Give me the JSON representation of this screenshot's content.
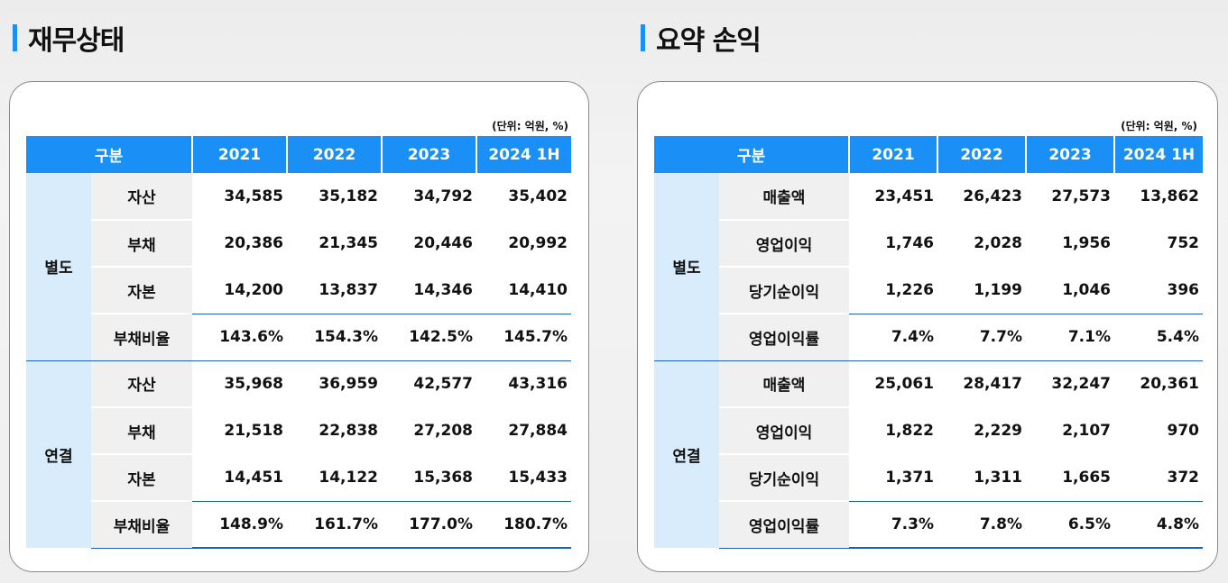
{
  "financial": {
    "title": "재무상태",
    "unit": "(단위: 억원, %)",
    "headers": [
      "구분",
      "2021",
      "2022",
      "2023",
      "2024 1H"
    ],
    "groups": [
      {
        "name": "별도",
        "rows": [
          {
            "label": "자산",
            "values": [
              "34,585",
              "35,182",
              "34,792",
              "35,402"
            ]
          },
          {
            "label": "부채",
            "values": [
              "20,386",
              "21,345",
              "20,446",
              "20,992"
            ]
          },
          {
            "label": "자본",
            "values": [
              "14,200",
              "13,837",
              "14,346",
              "14,410"
            ]
          },
          {
            "label": "부채비율",
            "values": [
              "143.6%",
              "154.3%",
              "142.5%",
              "145.7%"
            ]
          }
        ]
      },
      {
        "name": "연결",
        "rows": [
          {
            "label": "자산",
            "values": [
              "35,968",
              "36,959",
              "42,577",
              "43,316"
            ]
          },
          {
            "label": "부채",
            "values": [
              "21,518",
              "22,838",
              "27,208",
              "27,884"
            ]
          },
          {
            "label": "자본",
            "values": [
              "14,451",
              "14,122",
              "15,368",
              "15,433"
            ]
          },
          {
            "label": "부채비율",
            "values": [
              "148.9%",
              "161.7%",
              "177.0%",
              "180.7%"
            ]
          }
        ]
      }
    ]
  },
  "income": {
    "title": "요약 손익",
    "unit": "(단위: 억원, %)",
    "headers": [
      "구분",
      "2021",
      "2022",
      "2023",
      "2024 1H"
    ],
    "groups": [
      {
        "name": "별도",
        "rows": [
          {
            "label": "매출액",
            "values": [
              "23,451",
              "26,423",
              "27,573",
              "13,862"
            ]
          },
          {
            "label": "영업이익",
            "values": [
              "1,746",
              "2,028",
              "1,956",
              "752"
            ]
          },
          {
            "label": "당기순이익",
            "values": [
              "1,226",
              "1,199",
              "1,046",
              "396"
            ]
          },
          {
            "label": "영업이익률",
            "values": [
              "7.4%",
              "7.7%",
              "7.1%",
              "5.4%"
            ]
          }
        ]
      },
      {
        "name": "연결",
        "rows": [
          {
            "label": "매출액",
            "values": [
              "25,061",
              "28,417",
              "32,247",
              "20,361"
            ]
          },
          {
            "label": "영업이익",
            "values": [
              "1,822",
              "2,229",
              "2,107",
              "970"
            ]
          },
          {
            "label": "당기순이익",
            "values": [
              "1,371",
              "1,311",
              "1,665",
              "372"
            ]
          },
          {
            "label": "영업이익률",
            "values": [
              "7.3%",
              "7.8%",
              "6.5%",
              "4.8%"
            ]
          }
        ]
      }
    ]
  },
  "colors": {
    "accent": "#1a8ff5",
    "group_bg": "#d9ecfb",
    "item_bg": "#f0f0f0",
    "rule": "#1a5fb4"
  }
}
